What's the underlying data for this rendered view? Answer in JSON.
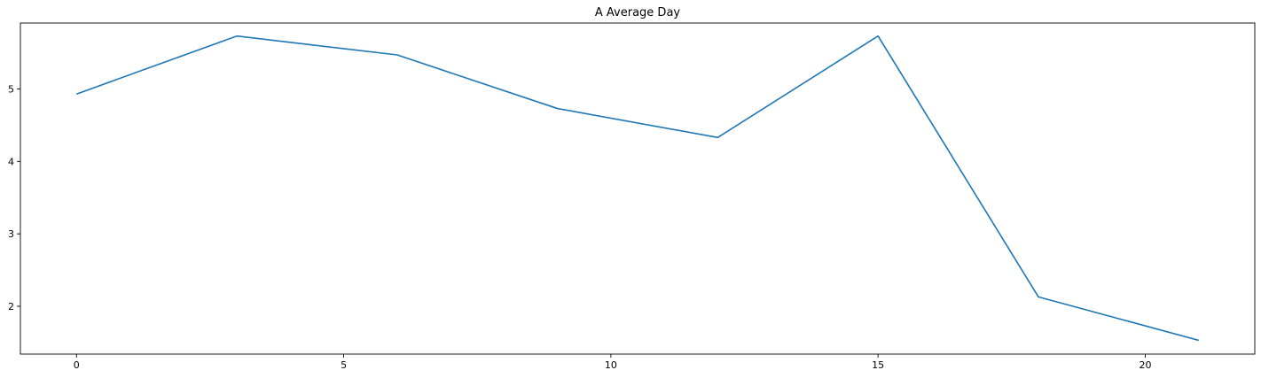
{
  "chart_data": {
    "type": "line",
    "title": "A Average Day",
    "xlabel": "",
    "ylabel": "",
    "x": [
      0,
      3,
      6,
      9,
      12,
      15,
      18,
      21
    ],
    "series": [
      {
        "values": [
          4.93,
          5.73,
          5.47,
          4.73,
          4.33,
          5.73,
          2.13,
          1.53
        ],
        "color": "#1f77b4"
      }
    ],
    "xticks": [
      0,
      5,
      10,
      15,
      20
    ],
    "yticks": [
      2,
      3,
      4,
      5
    ],
    "xlim": [
      -1.05,
      22.05
    ],
    "ylim": [
      1.34,
      5.91
    ],
    "grid": false,
    "legend": "none"
  }
}
